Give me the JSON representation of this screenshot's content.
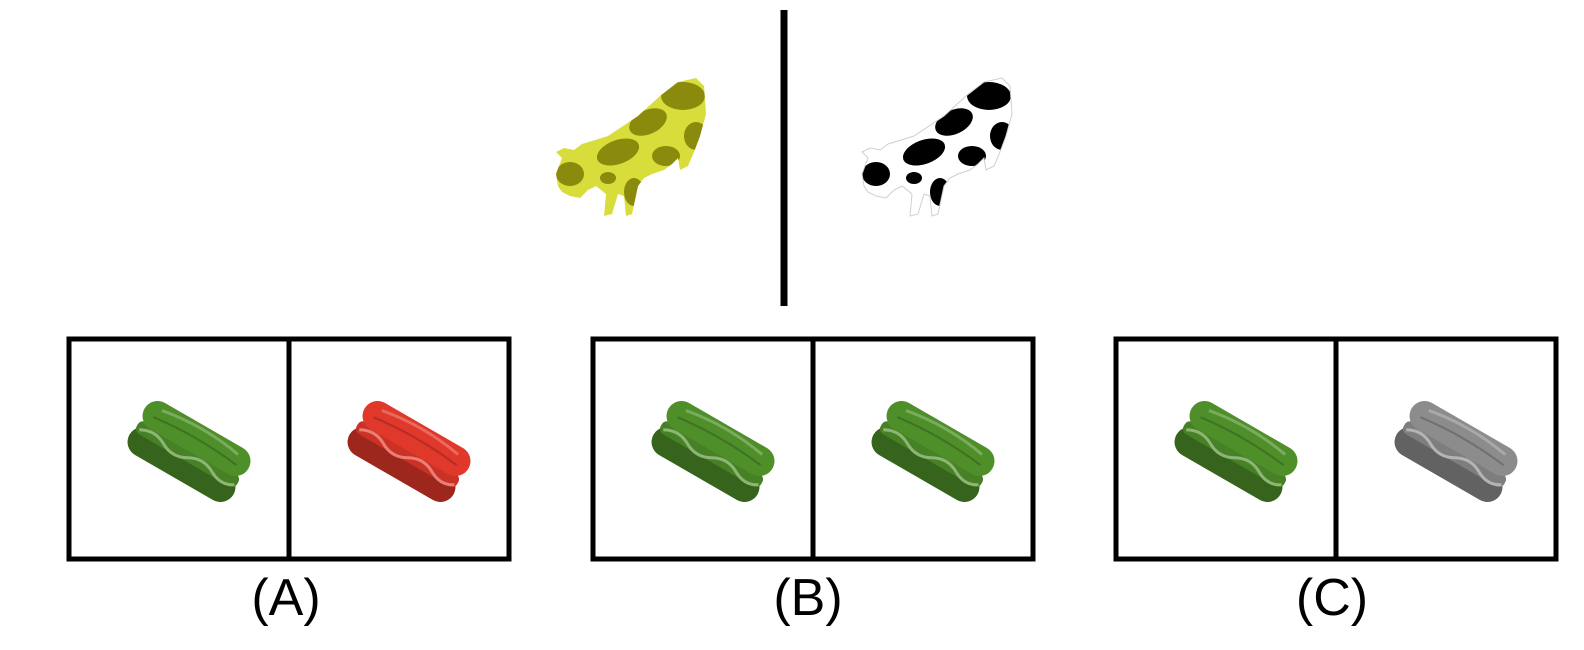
{
  "example": {
    "left_object": "cow",
    "left_color": "#d8dd3c",
    "left_spot_color": "#8a8a0c",
    "right_object": "cow",
    "right_color": "#ffffff",
    "right_spot_color": "#000000"
  },
  "options": [
    {
      "label": "(A)",
      "left_object": "sandwich",
      "left_color": "#4f8f2a",
      "right_object": "sandwich",
      "right_color": "#e0382a"
    },
    {
      "label": "(B)",
      "left_object": "sandwich",
      "left_color": "#4f8f2a",
      "right_object": "sandwich",
      "right_color": "#4f8f2a"
    },
    {
      "label": "(C)",
      "left_object": "sandwich",
      "left_color": "#4f8f2a",
      "right_object": "sandwich",
      "right_color": "#8c8c8c"
    }
  ]
}
